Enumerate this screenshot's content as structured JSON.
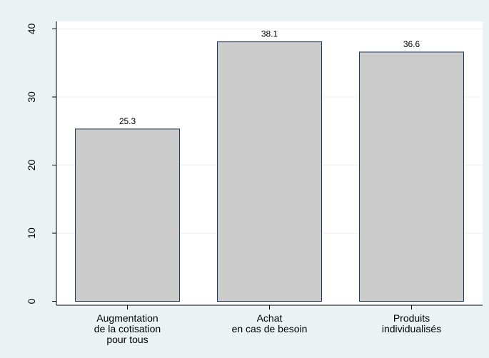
{
  "chart_data": {
    "type": "bar",
    "categories": [
      [
        "Augmentation",
        "de la cotisation",
        "pour tous"
      ],
      [
        "Achat",
        "en cas de besoin"
      ],
      [
        "Produits",
        "individualisés"
      ]
    ],
    "values": [
      25.3,
      38.1,
      36.6
    ],
    "value_labels": [
      "25.3",
      "38.1",
      "36.6"
    ],
    "yticks": [
      0,
      10,
      20,
      30,
      40
    ],
    "ylim": [
      0,
      40
    ],
    "title": "",
    "xlabel": "",
    "ylabel": "",
    "grid": true,
    "colors": {
      "background": "#eaf2f3",
      "plot_area": "#ffffff",
      "bar_fill": "#cccccc",
      "bar_stroke": "#1f3a5f",
      "grid": "#eaf2f3",
      "axis": "#000000",
      "text": "#000000"
    }
  }
}
